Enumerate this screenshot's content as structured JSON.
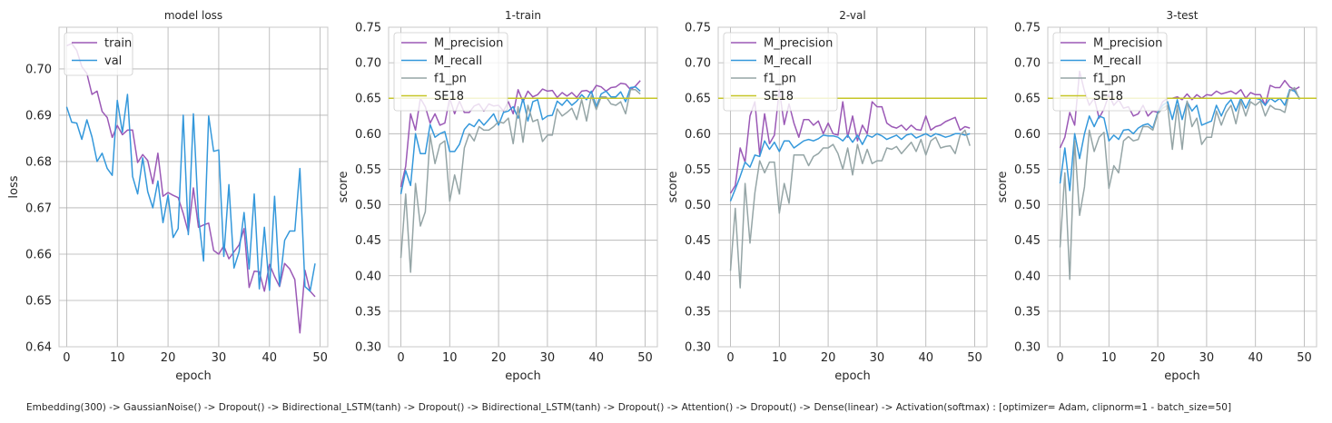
{
  "caption": "Embedding(300) -> GaussianNoise() -> Dropout() -> Bidirectional_LSTM(tanh) -> Dropout() -> Bidirectional_LSTM(tanh) -> Dropout() -> Attention() -> Dropout() -> Dense(linear) -> Activation(softmax) : [optimizer= Adam, clipnorm=1 - batch_size=50]",
  "colors": {
    "train": "#9b59b6",
    "val": "#3498db",
    "M_precision": "#9b59b6",
    "M_recall": "#3498db",
    "f1_pn": "#95a5a6",
    "SE18": "#c6c627",
    "grid": "#b0b0b0",
    "axes_frame": "#c8c8c8"
  },
  "chart_data": [
    {
      "type": "line",
      "title": "model loss",
      "xlabel": "epoch",
      "ylabel": "loss",
      "xlim": [
        -1.5,
        51.5
      ],
      "ylim": [
        0.64,
        0.709
      ],
      "xticks": [
        0,
        10,
        20,
        30,
        40,
        50
      ],
      "yticks": [
        0.64,
        0.65,
        0.66,
        0.67,
        0.68,
        0.69,
        0.7
      ],
      "ytick_labels": [
        "0.64",
        "0.65",
        "0.66",
        "0.67",
        "0.68",
        "0.69",
        "0.70"
      ],
      "grid": true,
      "legend": "top-left",
      "series": [
        {
          "name": "train",
          "color_key": "train",
          "values": [
            0.705,
            0.7055,
            0.704,
            0.7005,
            0.699,
            0.6945,
            0.6952,
            0.6908,
            0.6895,
            0.6852,
            0.6878,
            0.6858,
            0.6868,
            0.6868,
            0.6798,
            0.6815,
            0.6802,
            0.6752,
            0.6818,
            0.6725,
            0.6733,
            0.6727,
            0.6722,
            0.6688,
            0.6647,
            0.6743,
            0.6658,
            0.6663,
            0.6667,
            0.6608,
            0.66,
            0.6618,
            0.659,
            0.6605,
            0.662,
            0.6655,
            0.6528,
            0.6563,
            0.6562,
            0.652,
            0.6578,
            0.6552,
            0.653,
            0.658,
            0.6568,
            0.6545,
            0.643,
            0.6565,
            0.652,
            0.6508
          ]
        },
        {
          "name": "val",
          "color_key": "val",
          "values": [
            0.6918,
            0.6885,
            0.6883,
            0.6848,
            0.689,
            0.6853,
            0.68,
            0.6818,
            0.6785,
            0.677,
            0.6932,
            0.6863,
            0.6945,
            0.6768,
            0.673,
            0.6808,
            0.6735,
            0.67,
            0.6758,
            0.6668,
            0.6728,
            0.6636,
            0.6655,
            0.69,
            0.6642,
            0.6903,
            0.668,
            0.6585,
            0.6898,
            0.6822,
            0.6825,
            0.6595,
            0.675,
            0.657,
            0.6605,
            0.669,
            0.6568,
            0.673,
            0.6525,
            0.6658,
            0.6522,
            0.6725,
            0.6532,
            0.663,
            0.665,
            0.665,
            0.6785,
            0.653,
            0.652,
            0.658
          ]
        }
      ]
    },
    {
      "type": "line",
      "title": "1-train",
      "xlabel": "epoch",
      "ylabel": "score",
      "xlim": [
        -2.5,
        52.5
      ],
      "ylim": [
        0.3,
        0.75
      ],
      "xticks": [
        0,
        10,
        20,
        30,
        40,
        50
      ],
      "yticks": [
        0.3,
        0.35,
        0.4,
        0.45,
        0.5,
        0.55,
        0.6,
        0.65,
        0.7,
        0.75
      ],
      "ytick_labels": [
        "0.30",
        "0.35",
        "0.40",
        "0.45",
        "0.50",
        "0.55",
        "0.60",
        "0.65",
        "0.70",
        "0.75"
      ],
      "grid": true,
      "legend": "top-left",
      "series": [
        {
          "name": "M_precision",
          "color_key": "M_precision",
          "values": [
            0.525,
            0.554,
            0.628,
            0.605,
            0.65,
            0.638,
            0.615,
            0.628,
            0.612,
            0.615,
            0.65,
            0.628,
            0.646,
            0.63,
            0.63,
            0.639,
            0.642,
            0.632,
            0.642,
            0.639,
            0.64,
            0.632,
            0.645,
            0.628,
            0.662,
            0.645,
            0.66,
            0.652,
            0.655,
            0.663,
            0.66,
            0.661,
            0.651,
            0.658,
            0.653,
            0.658,
            0.651,
            0.66,
            0.661,
            0.657,
            0.668,
            0.666,
            0.66,
            0.665,
            0.666,
            0.671,
            0.67,
            0.662,
            0.667,
            0.675
          ]
        },
        {
          "name": "M_recall",
          "color_key": "M_recall",
          "values": [
            0.515,
            0.548,
            0.527,
            0.6,
            0.572,
            0.572,
            0.613,
            0.595,
            0.6,
            0.603,
            0.575,
            0.575,
            0.585,
            0.606,
            0.614,
            0.61,
            0.62,
            0.612,
            0.62,
            0.628,
            0.612,
            0.63,
            0.632,
            0.638,
            0.622,
            0.65,
            0.618,
            0.645,
            0.648,
            0.62,
            0.625,
            0.626,
            0.646,
            0.64,
            0.648,
            0.64,
            0.646,
            0.655,
            0.648,
            0.66,
            0.638,
            0.656,
            0.66,
            0.652,
            0.652,
            0.659,
            0.645,
            0.665,
            0.666,
            0.66
          ]
        },
        {
          "name": "f1_pn",
          "color_key": "f1_pn",
          "values": [
            0.425,
            0.515,
            0.405,
            0.53,
            0.47,
            0.49,
            0.598,
            0.558,
            0.585,
            0.59,
            0.505,
            0.542,
            0.515,
            0.58,
            0.6,
            0.59,
            0.61,
            0.605,
            0.605,
            0.61,
            0.617,
            0.615,
            0.622,
            0.586,
            0.638,
            0.588,
            0.64,
            0.617,
            0.62,
            0.589,
            0.598,
            0.598,
            0.635,
            0.625,
            0.63,
            0.636,
            0.62,
            0.648,
            0.618,
            0.654,
            0.634,
            0.652,
            0.652,
            0.642,
            0.64,
            0.645,
            0.628,
            0.662,
            0.662,
            0.656
          ]
        },
        {
          "name": "SE18",
          "color_key": "SE18",
          "values": [
            0.65,
            0.65
          ]
        }
      ]
    },
    {
      "type": "line",
      "title": "2-val",
      "xlabel": "epoch",
      "ylabel": "score",
      "xlim": [
        -2.5,
        52.5
      ],
      "ylim": [
        0.3,
        0.75
      ],
      "xticks": [
        0,
        10,
        20,
        30,
        40,
        50
      ],
      "yticks": [
        0.3,
        0.35,
        0.4,
        0.45,
        0.5,
        0.55,
        0.6,
        0.65,
        0.7,
        0.75
      ],
      "ytick_labels": [
        "0.30",
        "0.35",
        "0.40",
        "0.45",
        "0.50",
        "0.55",
        "0.60",
        "0.65",
        "0.70",
        "0.75"
      ],
      "grid": true,
      "legend": "top-left",
      "series": [
        {
          "name": "M_precision",
          "color_key": "M_precision",
          "values": [
            0.516,
            0.527,
            0.58,
            0.56,
            0.625,
            0.645,
            0.57,
            0.628,
            0.586,
            0.598,
            0.662,
            0.613,
            0.642,
            0.615,
            0.595,
            0.62,
            0.62,
            0.612,
            0.618,
            0.6,
            0.615,
            0.6,
            0.598,
            0.645,
            0.595,
            0.625,
            0.59,
            0.612,
            0.6,
            0.645,
            0.638,
            0.638,
            0.615,
            0.61,
            0.608,
            0.612,
            0.605,
            0.612,
            0.606,
            0.605,
            0.625,
            0.605,
            0.61,
            0.612,
            0.617,
            0.62,
            0.623,
            0.605,
            0.61,
            0.608
          ]
        },
        {
          "name": "M_recall",
          "color_key": "M_recall",
          "values": [
            0.505,
            0.522,
            0.54,
            0.56,
            0.553,
            0.57,
            0.568,
            0.59,
            0.578,
            0.588,
            0.575,
            0.59,
            0.59,
            0.58,
            0.585,
            0.59,
            0.592,
            0.59,
            0.593,
            0.598,
            0.597,
            0.597,
            0.595,
            0.59,
            0.598,
            0.588,
            0.598,
            0.585,
            0.598,
            0.595,
            0.6,
            0.597,
            0.592,
            0.595,
            0.598,
            0.592,
            0.598,
            0.6,
            0.594,
            0.597,
            0.6,
            0.596,
            0.6,
            0.598,
            0.595,
            0.597,
            0.6,
            0.6,
            0.598,
            0.6
          ]
        },
        {
          "name": "f1_pn",
          "color_key": "f1_pn",
          "values": [
            0.407,
            0.495,
            0.383,
            0.53,
            0.446,
            0.517,
            0.562,
            0.545,
            0.56,
            0.56,
            0.488,
            0.53,
            0.502,
            0.57,
            0.57,
            0.57,
            0.555,
            0.568,
            0.572,
            0.58,
            0.58,
            0.585,
            0.572,
            0.55,
            0.58,
            0.542,
            0.585,
            0.558,
            0.578,
            0.558,
            0.562,
            0.562,
            0.58,
            0.578,
            0.582,
            0.572,
            0.58,
            0.588,
            0.575,
            0.592,
            0.57,
            0.59,
            0.595,
            0.58,
            0.582,
            0.583,
            0.572,
            0.598,
            0.605,
            0.583
          ]
        },
        {
          "name": "SE18",
          "color_key": "SE18",
          "values": [
            0.65,
            0.65
          ]
        }
      ]
    },
    {
      "type": "line",
      "title": "3-test",
      "xlabel": "epoch",
      "ylabel": "score",
      "xlim": [
        -2.5,
        52.5
      ],
      "ylim": [
        0.3,
        0.75
      ],
      "xticks": [
        0,
        10,
        20,
        30,
        40,
        50
      ],
      "yticks": [
        0.3,
        0.35,
        0.4,
        0.45,
        0.5,
        0.55,
        0.6,
        0.65,
        0.7,
        0.75
      ],
      "ytick_labels": [
        "0.30",
        "0.35",
        "0.40",
        "0.45",
        "0.50",
        "0.55",
        "0.60",
        "0.65",
        "0.70",
        "0.75"
      ],
      "grid": true,
      "legend": "top-left",
      "series": [
        {
          "name": "M_precision",
          "color_key": "M_precision",
          "values": [
            0.58,
            0.595,
            0.63,
            0.612,
            0.688,
            0.66,
            0.64,
            0.65,
            0.622,
            0.635,
            0.655,
            0.64,
            0.648,
            0.636,
            0.638,
            0.625,
            0.628,
            0.64,
            0.625,
            0.632,
            0.63,
            0.645,
            0.65,
            0.65,
            0.652,
            0.648,
            0.656,
            0.648,
            0.655,
            0.65,
            0.655,
            0.654,
            0.66,
            0.656,
            0.658,
            0.66,
            0.656,
            0.662,
            0.65,
            0.658,
            0.655,
            0.655,
            0.64,
            0.668,
            0.665,
            0.665,
            0.675,
            0.666,
            0.662,
            0.666
          ]
        },
        {
          "name": "M_recall",
          "color_key": "M_recall",
          "values": [
            0.53,
            0.58,
            0.52,
            0.6,
            0.565,
            0.6,
            0.625,
            0.61,
            0.625,
            0.622,
            0.59,
            0.598,
            0.592,
            0.605,
            0.606,
            0.6,
            0.608,
            0.612,
            0.614,
            0.608,
            0.63,
            0.64,
            0.645,
            0.62,
            0.648,
            0.62,
            0.645,
            0.632,
            0.64,
            0.612,
            0.615,
            0.618,
            0.64,
            0.625,
            0.64,
            0.648,
            0.632,
            0.65,
            0.636,
            0.65,
            0.65,
            0.648,
            0.64,
            0.65,
            0.645,
            0.65,
            0.64,
            0.662,
            0.66,
            0.65
          ]
        },
        {
          "name": "f1_pn",
          "color_key": "f1_pn",
          "values": [
            0.44,
            0.545,
            0.395,
            0.59,
            0.485,
            0.525,
            0.605,
            0.575,
            0.595,
            0.602,
            0.523,
            0.555,
            0.545,
            0.59,
            0.596,
            0.59,
            0.592,
            0.61,
            0.61,
            0.605,
            0.628,
            0.636,
            0.64,
            0.578,
            0.64,
            0.578,
            0.646,
            0.61,
            0.622,
            0.585,
            0.595,
            0.595,
            0.632,
            0.612,
            0.63,
            0.64,
            0.614,
            0.646,
            0.625,
            0.645,
            0.64,
            0.646,
            0.625,
            0.64,
            0.635,
            0.634,
            0.63,
            0.66,
            0.665,
            0.648
          ]
        },
        {
          "name": "SE18",
          "color_key": "SE18",
          "values": [
            0.65,
            0.65
          ]
        }
      ]
    }
  ]
}
